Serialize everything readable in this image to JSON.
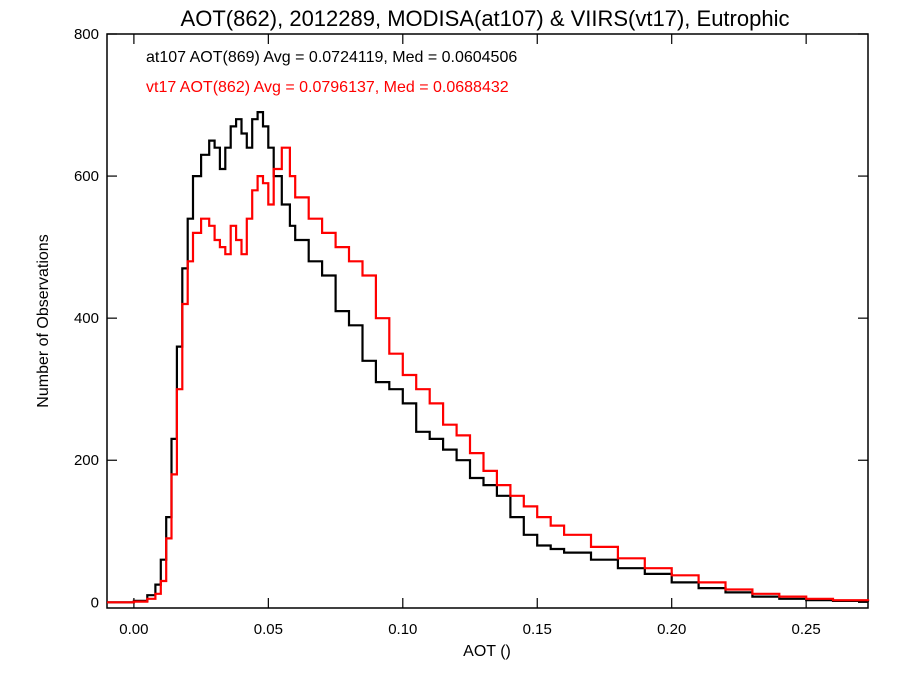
{
  "chart_data": {
    "type": "line",
    "title": "AOT(862), 2012289, MODISA(at107) & VIIRS(vt17), Eutrophic",
    "xlabel": "AOT ()",
    "ylabel": "Number of Observations",
    "xlim": [
      -0.01,
      0.273
    ],
    "ylim": [
      -8,
      800
    ],
    "x_ticks": [
      "0.00",
      "0.05",
      "0.10",
      "0.15",
      "0.20",
      "0.25"
    ],
    "y_ticks": [
      "0",
      "200",
      "400",
      "600",
      "800"
    ],
    "grid": false,
    "annotations": [
      {
        "text": "at107 AOT(869) Avg = 0.0724119, Med = 0.0604506",
        "color": "#000000"
      },
      {
        "text": "vt17 AOT(862) Avg = 0.0796137, Med = 0.0688432",
        "color": "#ff0000"
      }
    ],
    "series": [
      {
        "color": "#000000",
        "x": [
          -0.01,
          0.0,
          0.005,
          0.008,
          0.01,
          0.012,
          0.014,
          0.016,
          0.018,
          0.02,
          0.022,
          0.025,
          0.028,
          0.03,
          0.032,
          0.034,
          0.036,
          0.038,
          0.04,
          0.042,
          0.044,
          0.046,
          0.048,
          0.05,
          0.052,
          0.055,
          0.058,
          0.06,
          0.065,
          0.07,
          0.075,
          0.08,
          0.085,
          0.09,
          0.095,
          0.1,
          0.105,
          0.11,
          0.115,
          0.12,
          0.125,
          0.13,
          0.135,
          0.14,
          0.145,
          0.15,
          0.155,
          0.16,
          0.17,
          0.18,
          0.19,
          0.2,
          0.21,
          0.22,
          0.23,
          0.24,
          0.25,
          0.26,
          0.273
        ],
        "y": [
          0,
          2,
          10,
          25,
          60,
          120,
          230,
          360,
          470,
          540,
          600,
          630,
          650,
          640,
          610,
          640,
          670,
          680,
          660,
          640,
          680,
          690,
          670,
          640,
          600,
          560,
          530,
          510,
          480,
          460,
          410,
          390,
          340,
          310,
          300,
          280,
          240,
          230,
          215,
          200,
          175,
          165,
          150,
          120,
          95,
          80,
          75,
          70,
          60,
          48,
          40,
          28,
          20,
          14,
          8,
          5,
          3,
          2,
          1
        ]
      },
      {
        "color": "#ff0000",
        "x": [
          -0.01,
          0.0,
          0.005,
          0.008,
          0.01,
          0.012,
          0.014,
          0.016,
          0.018,
          0.02,
          0.022,
          0.025,
          0.028,
          0.03,
          0.032,
          0.034,
          0.036,
          0.038,
          0.04,
          0.042,
          0.044,
          0.046,
          0.048,
          0.05,
          0.052,
          0.055,
          0.058,
          0.06,
          0.065,
          0.07,
          0.075,
          0.08,
          0.085,
          0.09,
          0.095,
          0.1,
          0.105,
          0.11,
          0.115,
          0.12,
          0.125,
          0.13,
          0.135,
          0.14,
          0.145,
          0.15,
          0.155,
          0.16,
          0.17,
          0.18,
          0.19,
          0.2,
          0.21,
          0.22,
          0.23,
          0.24,
          0.25,
          0.26,
          0.273
        ],
        "y": [
          0,
          1,
          5,
          12,
          30,
          90,
          180,
          300,
          420,
          480,
          520,
          540,
          530,
          510,
          500,
          490,
          530,
          510,
          490,
          540,
          580,
          600,
          590,
          560,
          610,
          640,
          600,
          570,
          540,
          520,
          500,
          480,
          460,
          400,
          350,
          320,
          300,
          280,
          250,
          235,
          210,
          185,
          165,
          150,
          135,
          120,
          108,
          95,
          78,
          62,
          48,
          38,
          28,
          18,
          12,
          8,
          5,
          3,
          2
        ]
      }
    ]
  }
}
